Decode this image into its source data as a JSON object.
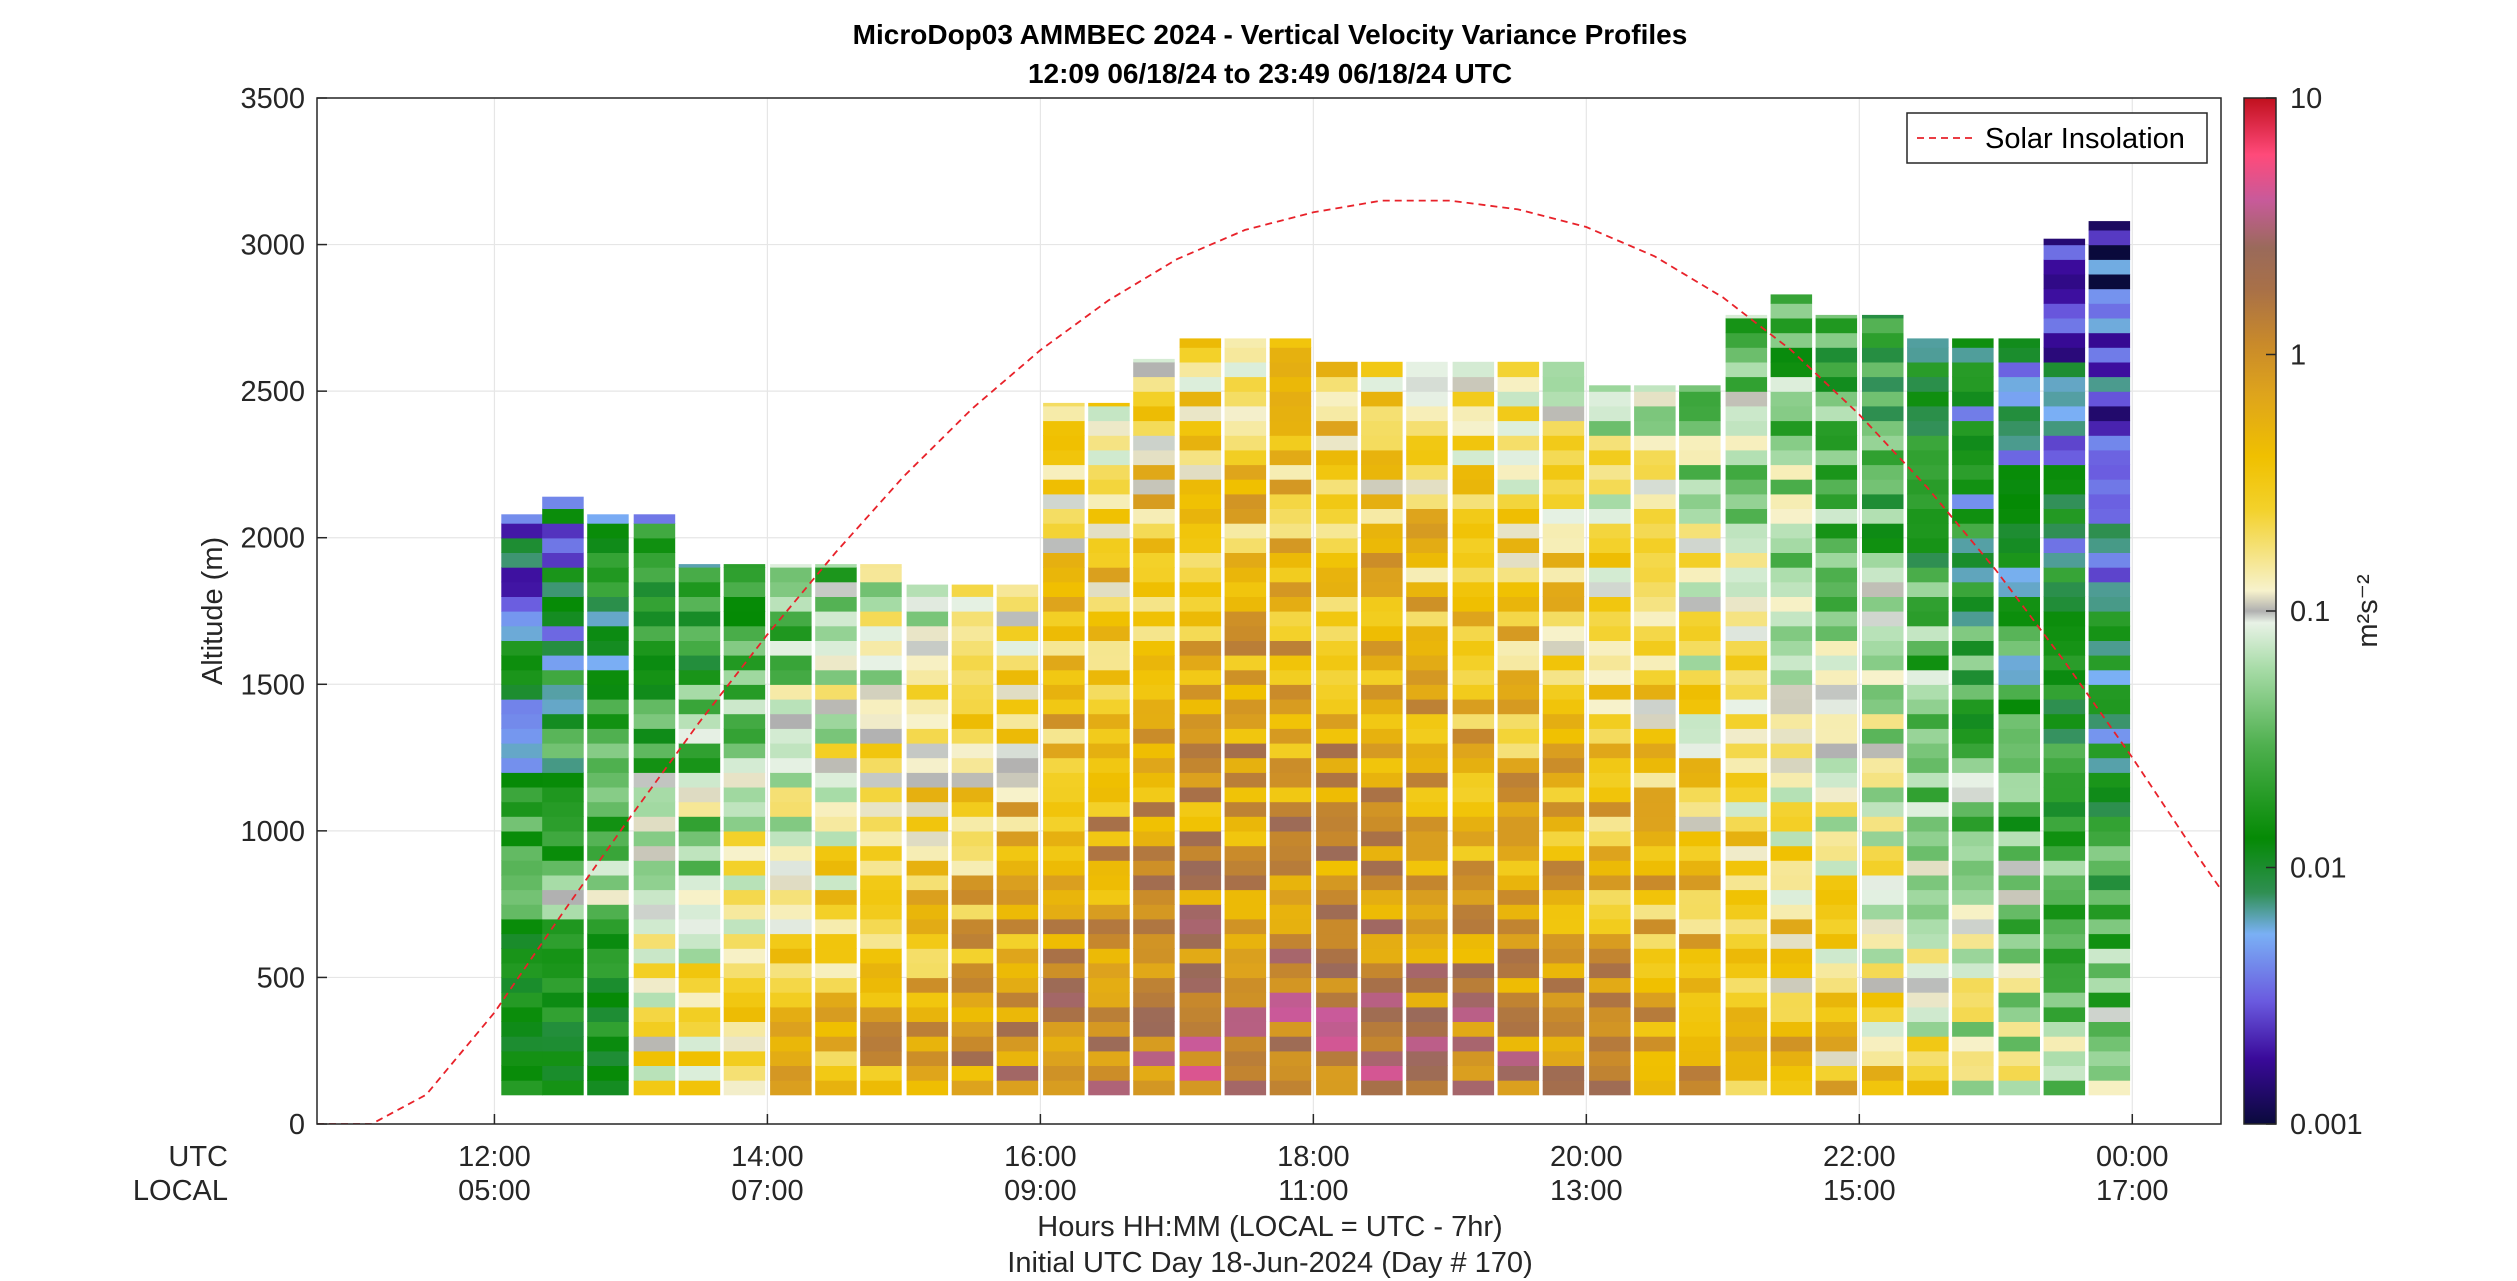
{
  "chart_data": {
    "type": "heatmap",
    "title": "MicroDop03 AMMBEC 2024 - Vertical Velocity Variance Profiles",
    "subtitle": "12:09 06/18/24 to 23:49 06/18/24  UTC",
    "ylabel": "Altitude (m)",
    "xlabel_line1": "Hours HH:MM  (LOCAL = UTC - 7hr)",
    "xlabel_line2": "Initial UTC Day 18-Jun-2024 (Day # 170)",
    "x_row_label_utc": "UTC",
    "x_row_label_local": "LOCAL",
    "xlim_hours_utc": [
      10.7,
      24.65
    ],
    "ylim": [
      0,
      3500
    ],
    "grid": true,
    "x_ticks": [
      {
        "utc": "12:00",
        "local": "05:00",
        "hour": 12
      },
      {
        "utc": "14:00",
        "local": "07:00",
        "hour": 14
      },
      {
        "utc": "16:00",
        "local": "09:00",
        "hour": 16
      },
      {
        "utc": "18:00",
        "local": "11:00",
        "hour": 18
      },
      {
        "utc": "20:00",
        "local": "13:00",
        "hour": 20
      },
      {
        "utc": "22:00",
        "local": "15:00",
        "hour": 22
      },
      {
        "utc": "00:00",
        "local": "17:00",
        "hour": 24
      }
    ],
    "y_ticks": [
      {
        "label": "0",
        "value": 0
      },
      {
        "label": "500",
        "value": 500
      },
      {
        "label": "1000",
        "value": 1000
      },
      {
        "label": "1500",
        "value": 1500
      },
      {
        "label": "2000",
        "value": 2000
      },
      {
        "label": "2500",
        "value": 2500
      },
      {
        "label": "3000",
        "value": 3000
      },
      {
        "label": "3500",
        "value": 3500
      }
    ],
    "colorbar": {
      "scale": "log",
      "range": [
        0.001,
        10
      ],
      "label": "m²s⁻²",
      "ticks": [
        {
          "label": "0.001",
          "value": 0.001
        },
        {
          "label": "0.01",
          "value": 0.01
        },
        {
          "label": "0.1",
          "value": 0.1
        },
        {
          "label": "1",
          "value": 1
        },
        {
          "label": "10",
          "value": 10
        }
      ],
      "stops": [
        {
          "v": 0.001,
          "color": "#0a0a3c"
        },
        {
          "v": 0.0018,
          "color": "#3a0a9a"
        },
        {
          "v": 0.003,
          "color": "#6a5adf"
        },
        {
          "v": 0.0055,
          "color": "#7ab0f5"
        },
        {
          "v": 0.008,
          "color": "#2f8f52"
        },
        {
          "v": 0.013,
          "color": "#058a05"
        },
        {
          "v": 0.03,
          "color": "#4fb04f"
        },
        {
          "v": 0.06,
          "color": "#a8dca8"
        },
        {
          "v": 0.09,
          "color": "#e8f2e6"
        },
        {
          "v": 0.1,
          "color": "#b0b0b0"
        },
        {
          "v": 0.12,
          "color": "#f7f2cc"
        },
        {
          "v": 0.25,
          "color": "#f3d12a"
        },
        {
          "v": 0.4,
          "color": "#f0c000"
        },
        {
          "v": 0.7,
          "color": "#dea41c"
        },
        {
          "v": 1.1,
          "color": "#c98a2a"
        },
        {
          "v": 1.8,
          "color": "#a87048"
        },
        {
          "v": 2.6,
          "color": "#9a6a5a"
        },
        {
          "v": 4.0,
          "color": "#c85a9a"
        },
        {
          "v": 6.0,
          "color": "#ff4a7a"
        },
        {
          "v": 10,
          "color": "#c0101e"
        }
      ]
    },
    "heatmap": {
      "description": "Per-profile variance columns; each column spans the profile's altitude range",
      "gate_spacing_m": 50,
      "columns": [
        {
          "t": 12.2,
          "bottom": 100,
          "top": 2080,
          "seed": 1
        },
        {
          "t": 12.5,
          "bottom": 100,
          "top": 2140,
          "seed": 2
        },
        {
          "t": 12.83,
          "bottom": 100,
          "top": 2080,
          "seed": 3
        },
        {
          "t": 13.17,
          "bottom": 100,
          "top": 2080,
          "seed": 4
        },
        {
          "t": 13.5,
          "bottom": 100,
          "top": 1910,
          "seed": 5
        },
        {
          "t": 13.83,
          "bottom": 100,
          "top": 1910,
          "seed": 6
        },
        {
          "t": 14.17,
          "bottom": 100,
          "top": 1910,
          "seed": 7
        },
        {
          "t": 14.5,
          "bottom": 100,
          "top": 1910,
          "seed": 8
        },
        {
          "t": 14.83,
          "bottom": 100,
          "top": 1910,
          "seed": 9
        },
        {
          "t": 15.17,
          "bottom": 100,
          "top": 1840,
          "seed": 10
        },
        {
          "t": 15.5,
          "bottom": 100,
          "top": 1840,
          "seed": 11
        },
        {
          "t": 15.83,
          "bottom": 100,
          "top": 1840,
          "seed": 12
        },
        {
          "t": 16.17,
          "bottom": 100,
          "top": 2460,
          "seed": 13
        },
        {
          "t": 16.5,
          "bottom": 100,
          "top": 2460,
          "seed": 14
        },
        {
          "t": 16.83,
          "bottom": 100,
          "top": 2610,
          "seed": 15
        },
        {
          "t": 17.17,
          "bottom": 100,
          "top": 2680,
          "seed": 16
        },
        {
          "t": 17.5,
          "bottom": 100,
          "top": 2680,
          "seed": 17
        },
        {
          "t": 17.83,
          "bottom": 100,
          "top": 2680,
          "seed": 18
        },
        {
          "t": 18.17,
          "bottom": 100,
          "top": 2600,
          "seed": 19
        },
        {
          "t": 18.5,
          "bottom": 100,
          "top": 2600,
          "seed": 20
        },
        {
          "t": 18.83,
          "bottom": 100,
          "top": 2600,
          "seed": 21
        },
        {
          "t": 19.17,
          "bottom": 100,
          "top": 2600,
          "seed": 22
        },
        {
          "t": 19.5,
          "bottom": 100,
          "top": 2600,
          "seed": 23
        },
        {
          "t": 19.83,
          "bottom": 100,
          "top": 2600,
          "seed": 24
        },
        {
          "t": 20.17,
          "bottom": 100,
          "top": 2520,
          "seed": 25
        },
        {
          "t": 20.5,
          "bottom": 100,
          "top": 2520,
          "seed": 26
        },
        {
          "t": 20.83,
          "bottom": 100,
          "top": 2520,
          "seed": 27
        },
        {
          "t": 21.17,
          "bottom": 100,
          "top": 2760,
          "seed": 28
        },
        {
          "t": 21.5,
          "bottom": 100,
          "top": 2830,
          "seed": 29
        },
        {
          "t": 21.83,
          "bottom": 100,
          "top": 2760,
          "seed": 30
        },
        {
          "t": 22.17,
          "bottom": 100,
          "top": 2760,
          "seed": 31
        },
        {
          "t": 22.5,
          "bottom": 100,
          "top": 2680,
          "seed": 32
        },
        {
          "t": 22.83,
          "bottom": 100,
          "top": 2680,
          "seed": 33
        },
        {
          "t": 23.17,
          "bottom": 100,
          "top": 2680,
          "seed": 34
        },
        {
          "t": 23.5,
          "bottom": 100,
          "top": 3020,
          "seed": 35
        },
        {
          "t": 23.83,
          "bottom": 100,
          "top": 3080,
          "seed": 36
        }
      ]
    },
    "series": [
      {
        "name": "Solar Insolation",
        "style": "dashed",
        "color": "#e8222a",
        "x_hours_utc": [
          10.7,
          11.1,
          11.5,
          12.0,
          12.5,
          13.0,
          13.5,
          14.0,
          14.5,
          15.0,
          15.5,
          16.0,
          16.5,
          17.0,
          17.5,
          18.0,
          18.5,
          19.0,
          19.5,
          20.0,
          20.5,
          21.0,
          21.5,
          22.0,
          22.5,
          23.0,
          23.5,
          24.0,
          24.5,
          24.65
        ],
        "y_altitude_equiv": [
          0,
          0,
          100,
          380,
          720,
          1050,
          1370,
          1670,
          1950,
          2210,
          2440,
          2640,
          2810,
          2950,
          3050,
          3110,
          3150,
          3150,
          3120,
          3060,
          2960,
          2820,
          2640,
          2420,
          2170,
          1890,
          1580,
          1250,
          900,
          800
        ]
      }
    ],
    "legend": {
      "placement": "top-right",
      "entries": [
        "Solar Insolation"
      ]
    }
  }
}
